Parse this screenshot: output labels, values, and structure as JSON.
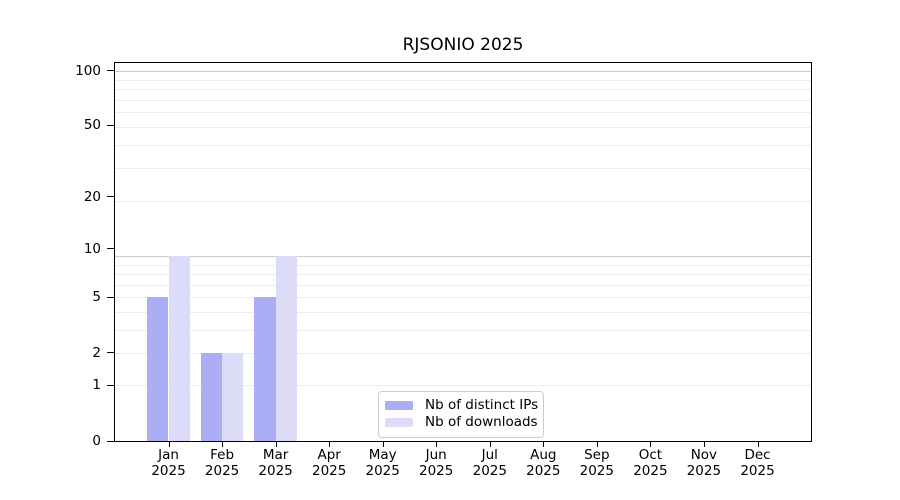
{
  "chart_data": {
    "type": "bar",
    "title": "RJSONIO 2025",
    "categories": [
      "Jan",
      "Feb",
      "Mar",
      "Apr",
      "May",
      "Jun",
      "Jul",
      "Aug",
      "Sep",
      "Oct",
      "Nov",
      "Dec"
    ],
    "x_year": "2025",
    "series": [
      {
        "name": "Nb of distinct IPs",
        "color": "#abadf5",
        "values": [
          5,
          2,
          5,
          0,
          0,
          0,
          0,
          0,
          0,
          0,
          0,
          0
        ]
      },
      {
        "name": "Nb of downloads",
        "color": "#dcdcf8",
        "values": [
          9,
          2,
          9,
          0,
          0,
          0,
          0,
          0,
          0,
          0,
          0,
          0
        ]
      }
    ],
    "yscale": "log1p",
    "yticks": [
      0,
      1,
      2,
      5,
      10,
      20,
      50,
      100
    ],
    "ylim": [
      0,
      110
    ],
    "xlim": [
      -1,
      12
    ],
    "bar_width": 0.4,
    "grid": true,
    "legend_position": "bottom-center",
    "colors": {
      "minor_grid": "#ececec",
      "major_grid": "#cccccc",
      "spine": "#000000",
      "text": "#000000",
      "background": "#ffffff"
    }
  }
}
